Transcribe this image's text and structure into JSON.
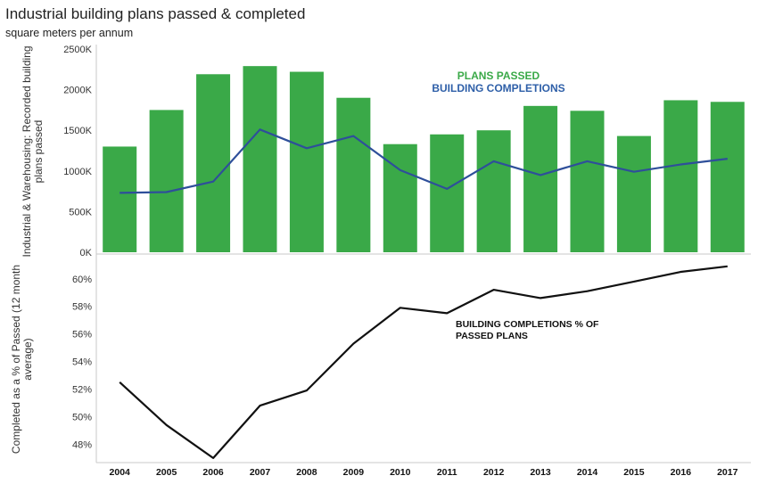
{
  "header": {
    "title": "Industrial building plans passed & completed",
    "subtitle": "square meters per annum"
  },
  "colors": {
    "bar": "#3aa948",
    "completions_line": "#2e4f9a",
    "pct_line": "#111111",
    "plans_legend": "#3aa948",
    "completions_legend": "#2e5fa8"
  },
  "chart_data": [
    {
      "type": "bar",
      "title": "",
      "categories": [
        "2004",
        "2005",
        "2006",
        "2007",
        "2008",
        "2009",
        "2010",
        "2011",
        "2012",
        "2013",
        "2014",
        "2015",
        "2016",
        "2017"
      ],
      "series": [
        {
          "name": "PLANS PASSED",
          "type": "bar",
          "values": [
            1300000,
            1750000,
            2190000,
            2290000,
            2220000,
            1900000,
            1330000,
            1450000,
            1500000,
            1800000,
            1740000,
            1430000,
            1870000,
            1850000
          ]
        },
        {
          "name": "BUILDING COMPLETIONS",
          "type": "line",
          "values": [
            730000,
            740000,
            870000,
            1510000,
            1280000,
            1430000,
            1010000,
            780000,
            1120000,
            950000,
            1120000,
            990000,
            1080000,
            1150000
          ]
        }
      ],
      "ylabel": "Industrial & Warehousing: Recorded building plans passed",
      "ylim": [
        0,
        2500000
      ],
      "yticks": [
        "0K",
        "500K",
        "1000K",
        "1500K",
        "2000K",
        "2500K"
      ],
      "legend": [
        "PLANS PASSED",
        "BUILDING COMPLETIONS"
      ],
      "legend_position": "top-right"
    },
    {
      "type": "line",
      "categories": [
        "2004",
        "2005",
        "2006",
        "2007",
        "2008",
        "2009",
        "2010",
        "2011",
        "2012",
        "2013",
        "2014",
        "2015",
        "2016",
        "2017"
      ],
      "series": [
        {
          "name": "BUILDING COMPLETIONS % OF PASSED PLANS",
          "values": [
            52.5,
            49.4,
            47.0,
            50.8,
            51.9,
            55.3,
            57.9,
            57.5,
            59.2,
            58.6,
            59.1,
            59.8,
            60.5,
            60.9
          ]
        }
      ],
      "ylabel": "Completed as a % of Passed (12 month average)",
      "ylim": [
        46.8,
        61.6
      ],
      "yticks": [
        "48%",
        "50%",
        "52%",
        "54%",
        "56%",
        "58%",
        "60%"
      ],
      "annotation": [
        "BUILDING COMPLETIONS % OF",
        "PASSED PLANS"
      ]
    }
  ]
}
